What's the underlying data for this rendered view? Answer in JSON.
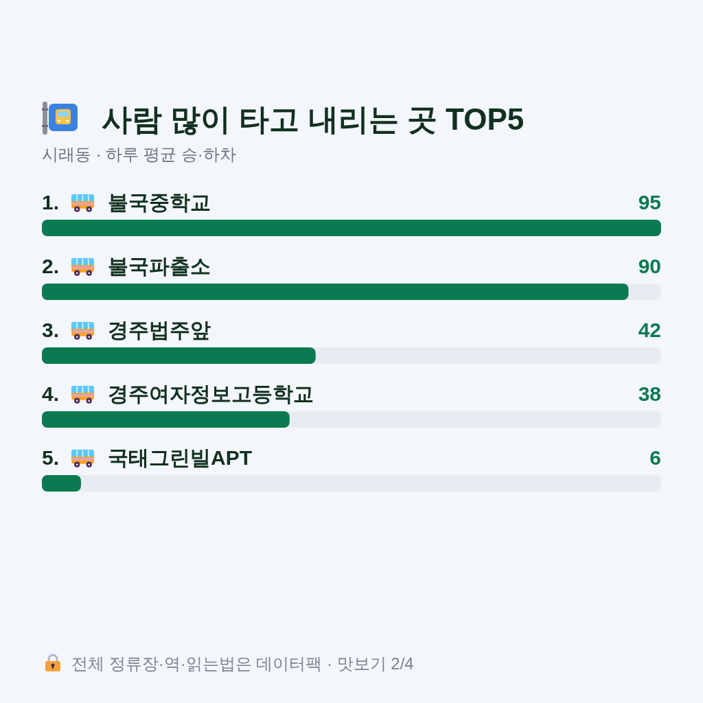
{
  "chart_data": {
    "type": "bar",
    "orientation": "horizontal",
    "title": "사람 많이 타고 내리는 곳 TOP5",
    "subtitle": "시래동 · 하루 평균 승·하차",
    "categories": [
      "1. 불국중학교",
      "2. 불국파출소",
      "3. 경주법주앞",
      "4. 경주여자정보고등학교",
      "5. 국태그린빌APT"
    ],
    "values": [
      95,
      90,
      42,
      38,
      6
    ],
    "color": "#0b7a52",
    "data_labels": true,
    "annotations": [
      "전체 정류장·역·읽는법은 데이터팩 · 맛보기 2/4"
    ]
  }
}
